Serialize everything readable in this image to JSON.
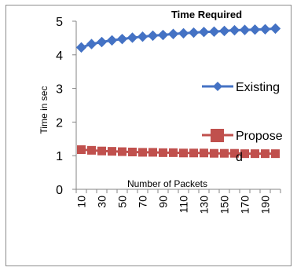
{
  "chart_data": {
    "type": "line",
    "title": "Time Required",
    "xlabel": "Number of Packets",
    "ylabel": "Time in sec",
    "x": [
      10,
      20,
      30,
      40,
      50,
      60,
      70,
      80,
      90,
      100,
      110,
      120,
      130,
      140,
      150,
      160,
      170,
      180,
      190,
      200
    ],
    "x_tick_labels": [
      "10",
      "30",
      "50",
      "70",
      "90",
      "110",
      "130",
      "150",
      "170",
      "190"
    ],
    "ylim": [
      0,
      5
    ],
    "y_ticks": [
      0,
      1,
      2,
      3,
      4,
      5
    ],
    "grid": false,
    "legend_position": "right",
    "series": [
      {
        "name": "Existing",
        "color": "#4472C4",
        "marker": "diamond",
        "values": [
          4.22,
          4.32,
          4.38,
          4.43,
          4.47,
          4.51,
          4.54,
          4.57,
          4.59,
          4.62,
          4.64,
          4.66,
          4.68,
          4.69,
          4.71,
          4.73,
          4.74,
          4.75,
          4.76,
          4.78
        ]
      },
      {
        "name": "Propose d",
        "color": "#C0504D",
        "marker": "square",
        "values": [
          1.18,
          1.16,
          1.14,
          1.13,
          1.12,
          1.11,
          1.1,
          1.1,
          1.09,
          1.09,
          1.08,
          1.08,
          1.08,
          1.07,
          1.07,
          1.07,
          1.06,
          1.06,
          1.06,
          1.06
        ]
      }
    ]
  }
}
